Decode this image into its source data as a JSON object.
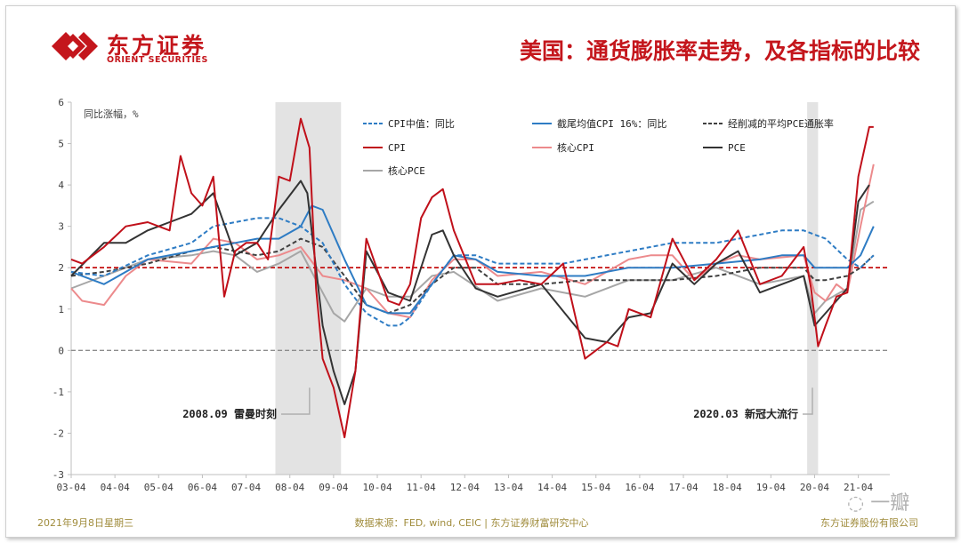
{
  "header": {
    "logo_cn": "东方证券",
    "logo_en": "ORIENT SECURITIES",
    "title": "美国：通货膨胀率走势，及各指标的比较"
  },
  "footer": {
    "date": "2021年9月8日星期三",
    "source": "数据来源：FED, wind, CEIC | 东方证券财富研究中心",
    "company": "东方证券股份有限公司"
  },
  "watermark": "一瓣",
  "colors": {
    "brand": "#c4161c",
    "footer_text": "#a08c3c",
    "recession_band": "#e3e3e3",
    "target_line": "#c00000"
  },
  "chart_data": {
    "type": "line",
    "ylabel": "同比涨幅，%",
    "ylim": [
      -3,
      6
    ],
    "yticks": [
      -3,
      -2,
      -1,
      0,
      1,
      2,
      3,
      4,
      5,
      6
    ],
    "xlim": [
      2003.25,
      2021.97
    ],
    "xticks": [
      "03-04",
      "04-04",
      "05-04",
      "06-04",
      "07-04",
      "08-04",
      "09-04",
      "10-04",
      "11-04",
      "12-04",
      "13-04",
      "14-04",
      "15-04",
      "16-04",
      "17-04",
      "18-04",
      "19-04",
      "20-04",
      "21-04"
    ],
    "reference_lines": [
      {
        "y": 2,
        "style": "dashed",
        "color": "#c00000"
      },
      {
        "y": 0,
        "style": "dashed",
        "color": "#8c8c8c"
      }
    ],
    "shaded_periods": [
      {
        "start": 2007.92,
        "end": 2009.42
      },
      {
        "start": 2020.08,
        "end": 2020.33
      }
    ],
    "annotations": [
      {
        "text": "2008.09 雷曼时刻",
        "x": 2008.7
      },
      {
        "text": "2020.03 新冠大流行",
        "x": 2020.2
      }
    ],
    "legend_placement": "top",
    "series": [
      {
        "name": "CPI中值：同比",
        "color": "#2e7cc4",
        "dash": "dashed",
        "x": [
          2003.25,
          2004,
          2005,
          2006,
          2006.5,
          2007,
          2007.5,
          2008,
          2008.5,
          2009,
          2009.5,
          2010,
          2010.5,
          2010.75,
          2011,
          2011.5,
          2012,
          2012.5,
          2013,
          2014,
          2014.5,
          2015,
          2016,
          2017,
          2018,
          2019,
          2019.5,
          2020,
          2020.25,
          2020.5,
          2021,
          2021.3,
          2021.6
        ],
        "y": [
          1.9,
          1.8,
          2.3,
          2.6,
          3.0,
          3.1,
          3.2,
          3.2,
          3.0,
          2.6,
          1.6,
          0.9,
          0.6,
          0.6,
          0.8,
          1.6,
          2.3,
          2.3,
          2.1,
          2.1,
          2.1,
          2.2,
          2.4,
          2.6,
          2.6,
          2.8,
          2.9,
          2.9,
          2.8,
          2.7,
          2.2,
          2.0,
          2.3
        ]
      },
      {
        "name": "截尾均值CPI 16%：同比",
        "color": "#2e7cc4",
        "dash": "solid",
        "x": [
          2003.25,
          2004,
          2005,
          2006,
          2006.5,
          2007,
          2007.5,
          2008,
          2008.5,
          2008.75,
          2009,
          2009.5,
          2010,
          2010.5,
          2011,
          2011.5,
          2012,
          2012.5,
          2013,
          2014,
          2015,
          2016,
          2017,
          2018,
          2019,
          2019.5,
          2020,
          2020.25,
          2020.5,
          2021,
          2021.3,
          2021.6
        ],
        "y": [
          1.9,
          1.6,
          2.2,
          2.4,
          2.5,
          2.6,
          2.7,
          2.7,
          3.0,
          3.5,
          3.4,
          2.2,
          1.1,
          0.9,
          0.9,
          1.6,
          2.3,
          2.2,
          1.9,
          1.8,
          1.8,
          2.0,
          2.0,
          2.1,
          2.2,
          2.3,
          2.3,
          2.0,
          2.0,
          2.0,
          2.3,
          3.0
        ]
      },
      {
        "name": "经削减的平均PCE通胀率",
        "color": "#404040",
        "dash": "dashed",
        "x": [
          2003.25,
          2004,
          2005,
          2006,
          2006.5,
          2007,
          2007.5,
          2008,
          2008.5,
          2009,
          2009.5,
          2010,
          2010.5,
          2011,
          2011.5,
          2012,
          2012.5,
          2013,
          2014,
          2015,
          2016,
          2017,
          2018,
          2019,
          2020,
          2020.25,
          2020.5,
          2021,
          2021.3,
          2021.6
        ],
        "y": [
          1.8,
          1.9,
          2.1,
          2.4,
          2.5,
          2.4,
          2.3,
          2.4,
          2.7,
          2.5,
          1.8,
          1.1,
          0.9,
          1.1,
          1.6,
          2.0,
          2.0,
          1.6,
          1.6,
          1.7,
          1.7,
          1.7,
          1.8,
          2.0,
          2.0,
          1.7,
          1.7,
          1.8,
          2.0,
          2.3
        ]
      },
      {
        "name": "CPI",
        "color": "#c0101a",
        "dash": "solid",
        "x": [
          2003.25,
          2003.5,
          2004,
          2004.5,
          2005,
          2005.5,
          2005.75,
          2006,
          2006.25,
          2006.5,
          2006.75,
          2007,
          2007.25,
          2007.5,
          2007.75,
          2008,
          2008.25,
          2008.5,
          2008.7,
          2008.85,
          2009,
          2009.25,
          2009.5,
          2009.75,
          2010,
          2010.5,
          2010.75,
          2011,
          2011.25,
          2011.5,
          2011.75,
          2012,
          2012.5,
          2013,
          2013.5,
          2014,
          2014.5,
          2015,
          2015.25,
          2015.5,
          2015.75,
          2016,
          2016.5,
          2017,
          2017.5,
          2018,
          2018.5,
          2019,
          2019.5,
          2020,
          2020.17,
          2020.33,
          2020.5,
          2020.75,
          2021,
          2021.25,
          2021.5,
          2021.6
        ],
        "y": [
          2.2,
          2.1,
          2.5,
          3.0,
          3.1,
          2.9,
          4.7,
          3.8,
          3.5,
          4.2,
          1.3,
          2.4,
          2.6,
          2.6,
          2.2,
          4.2,
          4.1,
          5.6,
          4.9,
          1.5,
          -0.2,
          -0.9,
          -2.1,
          -0.5,
          2.7,
          1.2,
          1.1,
          1.6,
          3.2,
          3.7,
          3.9,
          2.9,
          1.6,
          1.6,
          1.7,
          1.6,
          2.1,
          -0.2,
          0.0,
          0.2,
          0.1,
          1.0,
          0.8,
          2.7,
          1.7,
          2.2,
          2.9,
          1.6,
          1.8,
          2.5,
          1.5,
          0.1,
          0.6,
          1.3,
          1.4,
          4.2,
          5.4,
          5.4
        ]
      },
      {
        "name": "核心CPI",
        "color": "#ec8a8c",
        "dash": "solid",
        "x": [
          2003.25,
          2003.5,
          2004,
          2004.5,
          2005,
          2006,
          2006.5,
          2007,
          2007.5,
          2008,
          2008.5,
          2009,
          2009.5,
          2010,
          2010.5,
          2011,
          2011.5,
          2012,
          2012.5,
          2013,
          2014,
          2015,
          2016,
          2016.5,
          2017,
          2017.5,
          2018,
          2018.5,
          2019,
          2020,
          2020.25,
          2020.5,
          2020.75,
          2021,
          2021.3,
          2021.6
        ],
        "y": [
          1.5,
          1.2,
          1.1,
          1.8,
          2.2,
          2.1,
          2.7,
          2.6,
          2.2,
          2.3,
          2.5,
          1.8,
          1.7,
          1.5,
          0.9,
          0.8,
          1.7,
          2.2,
          2.2,
          1.8,
          1.9,
          1.6,
          2.2,
          2.3,
          2.3,
          1.7,
          2.1,
          2.3,
          2.2,
          2.3,
          1.4,
          1.2,
          1.6,
          1.4,
          3.0,
          4.5
        ]
      },
      {
        "name": "PCE",
        "color": "#333333",
        "dash": "solid",
        "x": [
          2003.25,
          2004,
          2004.5,
          2005,
          2005.5,
          2006,
          2006.5,
          2007,
          2007.5,
          2008,
          2008.5,
          2008.65,
          2009,
          2009.25,
          2009.5,
          2009.75,
          2010,
          2010.5,
          2011,
          2011.5,
          2011.75,
          2012,
          2012.5,
          2013,
          2014,
          2015,
          2015.5,
          2016,
          2016.5,
          2017,
          2017.5,
          2018,
          2018.5,
          2019,
          2020,
          2020.25,
          2020.5,
          2021,
          2021.25,
          2021.5
        ],
        "y": [
          1.8,
          2.6,
          2.6,
          2.9,
          3.1,
          3.3,
          3.8,
          2.3,
          2.6,
          3.4,
          4.1,
          3.8,
          0.6,
          -0.5,
          -1.3,
          -0.5,
          2.4,
          1.4,
          1.2,
          2.8,
          2.9,
          2.3,
          1.5,
          1.3,
          1.6,
          0.3,
          0.2,
          0.8,
          0.9,
          2.1,
          1.6,
          2.1,
          2.4,
          1.4,
          1.8,
          0.6,
          0.9,
          1.5,
          3.6,
          4.0
        ]
      },
      {
        "name": "核心PCE",
        "color": "#a6a6a6",
        "dash": "solid",
        "x": [
          2003.25,
          2004,
          2004.5,
          2005,
          2006,
          2006.5,
          2007,
          2007.5,
          2008,
          2008.5,
          2009,
          2009.25,
          2009.5,
          2010,
          2010.5,
          2011,
          2011.5,
          2012,
          2013,
          2014,
          2015,
          2016,
          2017,
          2018,
          2019,
          2020,
          2020.25,
          2020.5,
          2021,
          2021.3,
          2021.6
        ],
        "y": [
          1.5,
          1.8,
          2.0,
          2.2,
          2.3,
          2.4,
          2.3,
          1.9,
          2.1,
          2.4,
          1.4,
          0.9,
          0.7,
          1.5,
          1.3,
          1.3,
          1.8,
          1.9,
          1.2,
          1.5,
          1.3,
          1.7,
          1.7,
          2.0,
          1.6,
          1.8,
          0.9,
          1.2,
          1.5,
          3.4,
          3.6
        ]
      }
    ]
  }
}
